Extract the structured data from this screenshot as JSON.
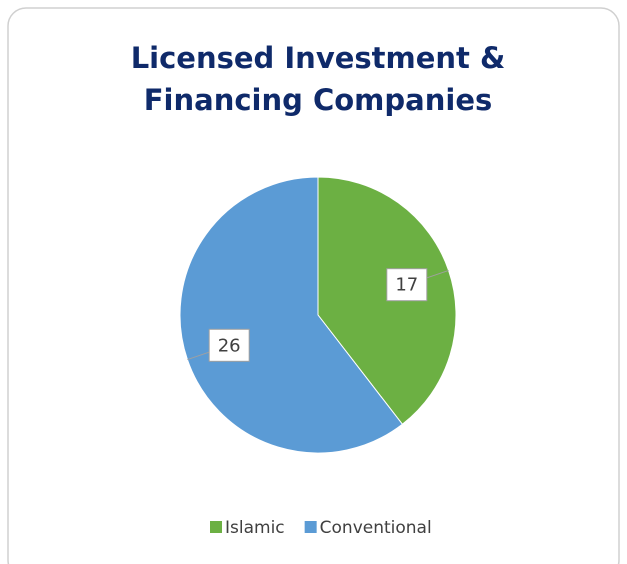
{
  "chart_data": {
    "type": "pie",
    "title": "Licensed Investment &",
    "subtitle": "Financing Companies",
    "categories": [
      "Islamic",
      "Conventional"
    ],
    "values": [
      17,
      26
    ],
    "colors": [
      "#6cb043",
      "#5b9bd5"
    ],
    "legend": "bottom"
  }
}
